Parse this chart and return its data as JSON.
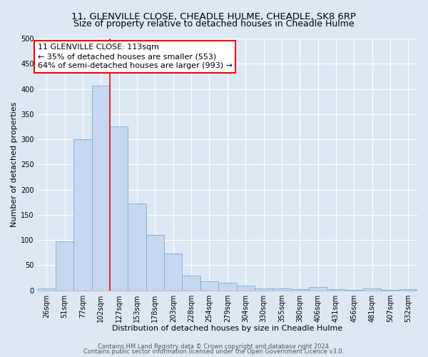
{
  "title": "11, GLENVILLE CLOSE, CHEADLE HULME, CHEADLE, SK8 6RP",
  "subtitle": "Size of property relative to detached houses in Cheadle Hulme",
  "xlabel": "Distribution of detached houses by size in Cheadle Hulme",
  "ylabel": "Number of detached properties",
  "bar_labels": [
    "26sqm",
    "51sqm",
    "77sqm",
    "102sqm",
    "127sqm",
    "153sqm",
    "178sqm",
    "203sqm",
    "228sqm",
    "254sqm",
    "279sqm",
    "304sqm",
    "330sqm",
    "355sqm",
    "380sqm",
    "406sqm",
    "431sqm",
    "456sqm",
    "481sqm",
    "507sqm",
    "532sqm"
  ],
  "bar_values": [
    3,
    97,
    300,
    407,
    325,
    173,
    110,
    73,
    29,
    18,
    15,
    10,
    3,
    3,
    2,
    7,
    2,
    1,
    3,
    1,
    2
  ],
  "bar_color": "#c5d8ef",
  "bar_edge_color": "#7aadd4",
  "property_line_x": 3.5,
  "property_line_color": "red",
  "annotation_line1": "11 GLENVILLE CLOSE: 113sqm",
  "annotation_line2": "← 35% of detached houses are smaller (553)",
  "annotation_line3": "64% of semi-detached houses are larger (993) →",
  "annotation_box_color": "white",
  "annotation_box_edge_color": "red",
  "ylim": [
    0,
    500
  ],
  "yticks": [
    0,
    50,
    100,
    150,
    200,
    250,
    300,
    350,
    400,
    450,
    500
  ],
  "footnote1": "Contains HM Land Registry data © Crown copyright and database right 2024.",
  "footnote2": "Contains public sector information licensed under the Open Government Licence v3.0.",
  "background_color": "#dce9f5",
  "plot_bg_color": "#dce9f5",
  "title_fontsize": 9.5,
  "axis_label_fontsize": 8,
  "tick_fontsize": 7,
  "annotation_fontsize": 8,
  "footnote_fontsize": 6
}
